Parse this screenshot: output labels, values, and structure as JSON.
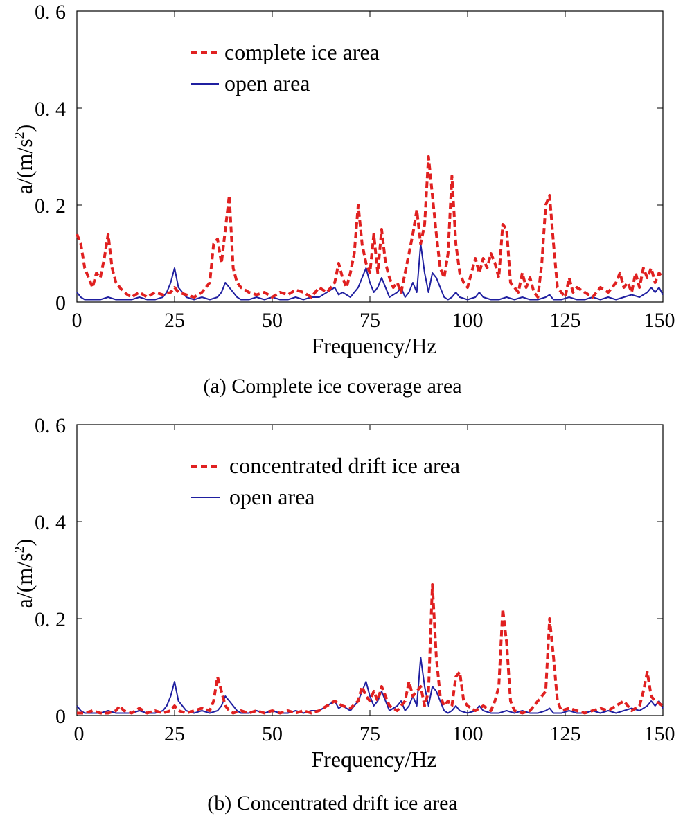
{
  "colors": {
    "ice": "#e02020",
    "open": "#1f1fa0",
    "axis": "#000000"
  },
  "chart_data": [
    {
      "type": "line",
      "caption": "(a)  Complete ice coverage area",
      "xlabel": "Frequency/Hz",
      "ylabel": "a/(m/s",
      "ylabel_sup": "2",
      "ylabel_end": ")",
      "xlim": [
        0,
        150
      ],
      "ylim": [
        0,
        0.6
      ],
      "xticks": [
        0,
        25,
        50,
        75,
        100,
        125,
        150
      ],
      "xtick_labels": [
        "0",
        "25",
        "50",
        "75",
        "100",
        "125",
        "150"
      ],
      "yticks": [
        0,
        0.2,
        0.4,
        0.6
      ],
      "ytick_labels": [
        "0",
        "0. 2",
        "0. 4",
        "0. 6"
      ],
      "legend_position": "top-center",
      "series": [
        {
          "name": "complete ice area",
          "style": "dashed",
          "x": [
            0,
            1,
            2,
            3,
            4,
            5,
            6,
            7,
            8,
            9,
            10,
            11,
            12,
            14,
            16,
            18,
            20,
            22,
            24,
            25,
            26,
            28,
            30,
            32,
            34,
            35,
            36,
            37,
            38,
            39,
            40,
            41,
            42,
            44,
            46,
            48,
            50,
            52,
            54,
            56,
            58,
            60,
            62,
            64,
            66,
            67,
            68,
            69,
            70,
            71,
            72,
            73,
            74,
            75,
            76,
            77,
            78,
            79,
            80,
            81,
            82,
            83,
            84,
            85,
            86,
            87,
            88,
            89,
            90,
            91,
            92,
            93,
            94,
            95,
            96,
            97,
            98,
            99,
            100,
            101,
            102,
            103,
            104,
            105,
            106,
            107,
            108,
            109,
            110,
            111,
            112,
            113,
            114,
            115,
            116,
            117,
            118,
            119,
            120,
            121,
            122,
            123,
            124,
            125,
            126,
            127,
            128,
            130,
            132,
            134,
            136,
            138,
            139,
            140,
            141,
            142,
            143,
            144,
            145,
            146,
            147,
            148,
            149,
            150
          ],
          "values": [
            0.14,
            0.12,
            0.07,
            0.05,
            0.03,
            0.06,
            0.05,
            0.09,
            0.14,
            0.07,
            0.04,
            0.03,
            0.02,
            0.01,
            0.02,
            0.01,
            0.02,
            0.015,
            0.02,
            0.03,
            0.02,
            0.015,
            0.01,
            0.02,
            0.04,
            0.12,
            0.13,
            0.08,
            0.15,
            0.22,
            0.07,
            0.04,
            0.03,
            0.02,
            0.015,
            0.02,
            0.01,
            0.02,
            0.015,
            0.025,
            0.02,
            0.01,
            0.03,
            0.02,
            0.04,
            0.08,
            0.05,
            0.03,
            0.06,
            0.1,
            0.2,
            0.12,
            0.08,
            0.06,
            0.14,
            0.06,
            0.15,
            0.08,
            0.05,
            0.03,
            0.04,
            0.02,
            0.06,
            0.1,
            0.14,
            0.19,
            0.12,
            0.16,
            0.3,
            0.22,
            0.14,
            0.07,
            0.05,
            0.1,
            0.26,
            0.12,
            0.06,
            0.04,
            0.03,
            0.06,
            0.09,
            0.06,
            0.09,
            0.07,
            0.1,
            0.08,
            0.05,
            0.16,
            0.15,
            0.04,
            0.03,
            0.02,
            0.06,
            0.03,
            0.05,
            0.02,
            0.01,
            0.08,
            0.2,
            0.22,
            0.12,
            0.03,
            0.02,
            0.01,
            0.05,
            0.02,
            0.03,
            0.02,
            0.01,
            0.03,
            0.02,
            0.04,
            0.06,
            0.03,
            0.04,
            0.02,
            0.06,
            0.03,
            0.07,
            0.05,
            0.07,
            0.04,
            0.06,
            0.05
          ]
        },
        {
          "name": "open area",
          "style": "solid",
          "x": [
            0,
            1,
            2,
            4,
            6,
            8,
            10,
            12,
            14,
            16,
            18,
            20,
            22,
            23,
            24,
            25,
            26,
            27,
            28,
            30,
            32,
            34,
            36,
            37,
            38,
            39,
            40,
            41,
            42,
            44,
            46,
            48,
            50,
            52,
            54,
            56,
            58,
            60,
            62,
            64,
            66,
            67,
            68,
            69,
            70,
            71,
            72,
            73,
            74,
            75,
            76,
            77,
            78,
            79,
            80,
            81,
            82,
            83,
            84,
            85,
            86,
            87,
            88,
            89,
            90,
            91,
            92,
            93,
            94,
            95,
            96,
            97,
            98,
            100,
            102,
            103,
            104,
            106,
            108,
            110,
            112,
            114,
            116,
            118,
            120,
            121,
            122,
            124,
            126,
            128,
            130,
            132,
            134,
            136,
            138,
            140,
            142,
            144,
            146,
            147,
            148,
            149,
            150
          ],
          "values": [
            0.02,
            0.01,
            0.005,
            0.005,
            0.005,
            0.01,
            0.005,
            0.005,
            0.005,
            0.01,
            0.005,
            0.005,
            0.01,
            0.02,
            0.04,
            0.07,
            0.03,
            0.02,
            0.01,
            0.005,
            0.01,
            0.005,
            0.01,
            0.02,
            0.04,
            0.03,
            0.02,
            0.01,
            0.005,
            0.005,
            0.01,
            0.005,
            0.01,
            0.005,
            0.005,
            0.01,
            0.005,
            0.01,
            0.01,
            0.02,
            0.03,
            0.015,
            0.02,
            0.015,
            0.01,
            0.02,
            0.03,
            0.05,
            0.07,
            0.04,
            0.02,
            0.03,
            0.05,
            0.03,
            0.01,
            0.015,
            0.02,
            0.03,
            0.01,
            0.02,
            0.04,
            0.02,
            0.12,
            0.06,
            0.02,
            0.06,
            0.05,
            0.03,
            0.01,
            0.005,
            0.01,
            0.02,
            0.01,
            0.005,
            0.01,
            0.02,
            0.01,
            0.005,
            0.005,
            0.01,
            0.005,
            0.01,
            0.005,
            0.005,
            0.01,
            0.015,
            0.005,
            0.005,
            0.01,
            0.005,
            0.005,
            0.01,
            0.005,
            0.01,
            0.005,
            0.01,
            0.015,
            0.01,
            0.02,
            0.03,
            0.02,
            0.03,
            0.015
          ]
        }
      ]
    },
    {
      "type": "line",
      "caption": "(b)  Concentrated drift ice area",
      "xlabel": "Frequency/Hz",
      "ylabel": "a/(m/s",
      "ylabel_sup": "2",
      "ylabel_end": ")",
      "xlim": [
        0,
        150
      ],
      "ylim": [
        0,
        0.6
      ],
      "xticks": [
        0,
        25,
        50,
        75,
        100,
        125,
        150
      ],
      "xtick_labels": [
        "0",
        "25",
        "50",
        "75",
        "100",
        "125",
        "150"
      ],
      "yticks": [
        0,
        0.2,
        0.4,
        0.6
      ],
      "ytick_labels": [
        "0",
        "0. 2",
        "0. 4",
        "0. 6"
      ],
      "legend_position": "top-center",
      "series": [
        {
          "name": "concentrated drift ice area",
          "style": "dashed",
          "x": [
            0,
            2,
            4,
            6,
            8,
            10,
            11,
            12,
            14,
            16,
            17,
            18,
            20,
            22,
            24,
            25,
            26,
            28,
            30,
            32,
            34,
            35,
            36,
            37,
            38,
            39,
            40,
            42,
            44,
            46,
            48,
            50,
            52,
            54,
            56,
            58,
            60,
            62,
            64,
            66,
            68,
            70,
            72,
            73,
            74,
            75,
            76,
            77,
            78,
            80,
            82,
            84,
            85,
            86,
            87,
            88,
            89,
            90,
            91,
            92,
            93,
            94,
            95,
            96,
            97,
            98,
            99,
            100,
            102,
            104,
            106,
            107,
            108,
            109,
            110,
            111,
            112,
            114,
            116,
            118,
            120,
            121,
            122,
            123,
            124,
            126,
            128,
            130,
            132,
            134,
            136,
            138,
            140,
            142,
            144,
            145,
            146,
            147,
            148,
            150
          ],
          "values": [
            0.005,
            0.005,
            0.01,
            0.005,
            0.005,
            0.01,
            0.02,
            0.01,
            0.005,
            0.015,
            0.01,
            0.005,
            0.01,
            0.005,
            0.01,
            0.02,
            0.01,
            0.005,
            0.01,
            0.015,
            0.01,
            0.03,
            0.08,
            0.05,
            0.02,
            0.01,
            0.005,
            0.01,
            0.005,
            0.01,
            0.005,
            0.01,
            0.005,
            0.01,
            0.005,
            0.01,
            0.005,
            0.01,
            0.02,
            0.03,
            0.02,
            0.015,
            0.03,
            0.06,
            0.04,
            0.03,
            0.05,
            0.03,
            0.06,
            0.02,
            0.01,
            0.03,
            0.07,
            0.04,
            0.05,
            0.06,
            0.02,
            0.05,
            0.27,
            0.12,
            0.04,
            0.02,
            0.03,
            0.02,
            0.08,
            0.09,
            0.03,
            0.02,
            0.01,
            0.02,
            0.01,
            0.03,
            0.06,
            0.22,
            0.15,
            0.03,
            0.01,
            0.005,
            0.01,
            0.03,
            0.05,
            0.2,
            0.12,
            0.03,
            0.01,
            0.015,
            0.01,
            0.005,
            0.01,
            0.015,
            0.01,
            0.02,
            0.03,
            0.01,
            0.02,
            0.05,
            0.09,
            0.04,
            0.03,
            0.02
          ]
        },
        {
          "name": "open area",
          "style": "solid",
          "x": [
            0,
            1,
            2,
            4,
            6,
            8,
            10,
            12,
            14,
            16,
            18,
            20,
            22,
            23,
            24,
            25,
            26,
            27,
            28,
            30,
            32,
            34,
            36,
            37,
            38,
            39,
            40,
            41,
            42,
            44,
            46,
            48,
            50,
            52,
            54,
            56,
            58,
            60,
            62,
            64,
            66,
            67,
            68,
            69,
            70,
            71,
            72,
            73,
            74,
            75,
            76,
            77,
            78,
            79,
            80,
            81,
            82,
            83,
            84,
            85,
            86,
            87,
            88,
            89,
            90,
            91,
            92,
            93,
            94,
            95,
            96,
            97,
            98,
            100,
            102,
            103,
            104,
            106,
            108,
            110,
            112,
            114,
            116,
            118,
            120,
            121,
            122,
            124,
            126,
            128,
            130,
            132,
            134,
            136,
            138,
            140,
            142,
            144,
            146,
            147,
            148,
            149,
            150
          ],
          "values": [
            0.02,
            0.01,
            0.005,
            0.005,
            0.005,
            0.01,
            0.005,
            0.005,
            0.005,
            0.01,
            0.005,
            0.005,
            0.01,
            0.02,
            0.04,
            0.07,
            0.03,
            0.02,
            0.01,
            0.005,
            0.01,
            0.005,
            0.01,
            0.02,
            0.04,
            0.03,
            0.02,
            0.01,
            0.005,
            0.005,
            0.01,
            0.005,
            0.01,
            0.005,
            0.005,
            0.01,
            0.005,
            0.01,
            0.01,
            0.02,
            0.03,
            0.015,
            0.02,
            0.015,
            0.01,
            0.02,
            0.03,
            0.05,
            0.07,
            0.04,
            0.02,
            0.03,
            0.05,
            0.03,
            0.01,
            0.015,
            0.02,
            0.03,
            0.01,
            0.02,
            0.04,
            0.02,
            0.12,
            0.06,
            0.02,
            0.06,
            0.05,
            0.03,
            0.01,
            0.005,
            0.01,
            0.02,
            0.01,
            0.005,
            0.01,
            0.02,
            0.01,
            0.005,
            0.005,
            0.01,
            0.005,
            0.01,
            0.005,
            0.005,
            0.01,
            0.015,
            0.005,
            0.005,
            0.01,
            0.005,
            0.005,
            0.01,
            0.005,
            0.01,
            0.005,
            0.01,
            0.015,
            0.01,
            0.02,
            0.03,
            0.02,
            0.03,
            0.015
          ]
        }
      ]
    }
  ]
}
